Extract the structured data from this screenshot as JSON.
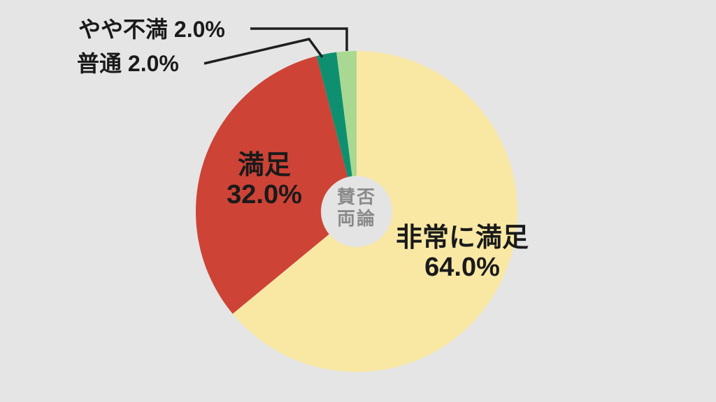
{
  "canvas": {
    "background": "#E5E5E5",
    "label_text_color": "#1A1A1A",
    "leader_line_color": "#1F1F1F",
    "center_text_color": "#8A8A8A"
  },
  "chart_data": {
    "type": "pie",
    "title": "",
    "categories": [
      "非常に満足",
      "満足",
      "普通",
      "やや不満"
    ],
    "values": [
      64.0,
      32.0,
      2.0,
      2.0
    ],
    "labels_pct": [
      "64.0%",
      "32.0%",
      "2.0%",
      "2.0%"
    ],
    "unit": "%",
    "colors": [
      "#F9E8A4",
      "#CD4336",
      "#0E9070",
      "#A9D892"
    ],
    "slice_ids": [
      "very-satisfied",
      "satisfied",
      "neutral",
      "slightly-dissatisfied"
    ],
    "direction": "clockwise",
    "start_angle_deg": 0,
    "donut_hole": true,
    "donut_hole_ratio": 0.22,
    "donut_hole_color": "#E4E4E4",
    "center_label_lines": [
      "賛否",
      "両論"
    ],
    "legend_position": "none",
    "callout_slices": [
      "普通",
      "やや不満"
    ]
  }
}
